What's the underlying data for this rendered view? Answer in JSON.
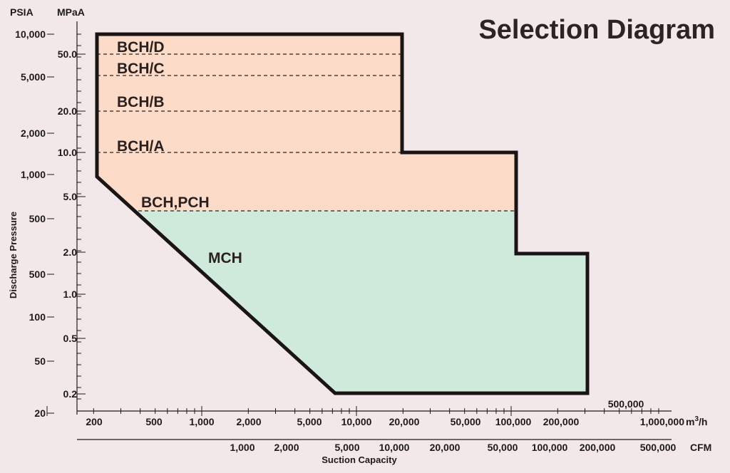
{
  "title": "Selection Diagram",
  "y_axis": {
    "title": "Discharge Pressure",
    "psia_unit": "PSIA",
    "mpa_unit": "MPaA",
    "psia_ticks": [
      "10,000",
      "5,000",
      "2,000",
      "1,000",
      "500",
      "500",
      "100",
      "50",
      "20"
    ],
    "mpa_ticks": [
      "50.0",
      "20.0",
      "10.0",
      "5.0",
      "2.0",
      "1.0",
      "0.5",
      "0.2"
    ]
  },
  "x_axis": {
    "title": "Suction Capacity",
    "m3h_ticks": [
      "200",
      "500",
      "1,000",
      "2,000",
      "5,000",
      "10,000",
      "20,000",
      "50,000",
      "100,000",
      "200,000",
      "500,000",
      "1,000,000"
    ],
    "m3h_unit": "m³/h",
    "cfm_ticks": [
      "1,000",
      "2,000",
      "5,000",
      "10,000",
      "20,000",
      "50,000",
      "100,000",
      "200,000",
      "500,000"
    ],
    "cfm_unit": "CFM"
  },
  "regions": {
    "bch": {
      "color": "#fcdcc8"
    },
    "mch": {
      "color": "#cfeadb"
    }
  },
  "labels": {
    "bch_d": "BCH/D",
    "bch_c": "BCH/C",
    "bch_b": "BCH/B",
    "bch_a": "BCH/A",
    "bch_pch": "BCH,PCH",
    "mch": "MCH"
  },
  "colors": {
    "background": "#f2e8ea",
    "outline": "#1a1414"
  }
}
